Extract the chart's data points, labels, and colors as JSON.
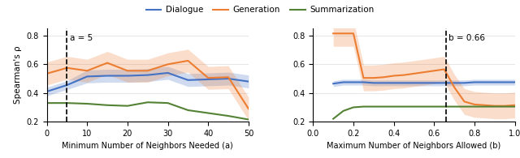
{
  "left": {
    "xlabel": "Minimum Number of Neighbors Needed (a)",
    "ylabel": "Spearman's ρ",
    "vline": 5,
    "vline_label": "a = 5",
    "xlim": [
      0,
      50
    ],
    "ylim": [
      0.2,
      0.85
    ],
    "yticks": [
      0.2,
      0.4,
      0.6,
      0.8
    ],
    "xticks": [
      0,
      10,
      20,
      30,
      40,
      50
    ],
    "dialogue": {
      "x": [
        0,
        5,
        10,
        15,
        20,
        25,
        30,
        35,
        40,
        45,
        50
      ],
      "y": [
        0.41,
        0.455,
        0.515,
        0.52,
        0.52,
        0.525,
        0.54,
        0.49,
        0.495,
        0.5,
        0.48
      ],
      "y_lo": [
        0.38,
        0.425,
        0.47,
        0.475,
        0.475,
        0.48,
        0.495,
        0.445,
        0.45,
        0.455,
        0.435
      ],
      "y_hi": [
        0.44,
        0.485,
        0.56,
        0.565,
        0.565,
        0.57,
        0.585,
        0.535,
        0.54,
        0.545,
        0.525
      ],
      "color": "#4472c4"
    },
    "generation": {
      "x": [
        0,
        5,
        10,
        15,
        20,
        25,
        30,
        35,
        40,
        45,
        50
      ],
      "y": [
        0.535,
        0.575,
        0.555,
        0.61,
        0.555,
        0.555,
        0.6,
        0.625,
        0.505,
        0.51,
        0.29
      ],
      "y_lo": [
        0.455,
        0.495,
        0.475,
        0.53,
        0.475,
        0.475,
        0.52,
        0.545,
        0.425,
        0.43,
        0.21
      ],
      "y_hi": [
        0.615,
        0.655,
        0.635,
        0.69,
        0.635,
        0.635,
        0.68,
        0.705,
        0.585,
        0.59,
        0.37
      ],
      "color": "#ed7d31"
    },
    "summarization": {
      "x": [
        0,
        5,
        10,
        15,
        20,
        25,
        30,
        35,
        40,
        45,
        50
      ],
      "y": [
        0.33,
        0.33,
        0.325,
        0.315,
        0.31,
        0.335,
        0.33,
        0.28,
        0.26,
        0.24,
        0.215
      ],
      "color": "#548235"
    }
  },
  "right": {
    "xlabel": "Maximum Number of Neighbors Allowed (b)",
    "ylabel": "",
    "vline": 0.66,
    "vline_label": "b = 0.66",
    "xlim": [
      0.0,
      1.0
    ],
    "ylim": [
      0.2,
      0.85
    ],
    "yticks": [
      0.2,
      0.4,
      0.6,
      0.8
    ],
    "xticks": [
      0.0,
      0.2,
      0.4,
      0.6,
      0.8,
      1.0
    ],
    "dialogue": {
      "x": [
        0.1,
        0.15,
        0.2,
        0.25,
        0.3,
        0.35,
        0.4,
        0.45,
        0.5,
        0.55,
        0.6,
        0.65,
        0.7,
        0.75,
        0.8,
        0.85,
        0.9,
        0.95,
        1.0
      ],
      "y": [
        0.465,
        0.475,
        0.475,
        0.475,
        0.47,
        0.47,
        0.47,
        0.47,
        0.47,
        0.47,
        0.47,
        0.47,
        0.47,
        0.47,
        0.475,
        0.475,
        0.475,
        0.475,
        0.475
      ],
      "y_lo": [
        0.445,
        0.455,
        0.455,
        0.455,
        0.45,
        0.45,
        0.45,
        0.45,
        0.45,
        0.45,
        0.45,
        0.45,
        0.45,
        0.45,
        0.455,
        0.455,
        0.455,
        0.455,
        0.455
      ],
      "y_hi": [
        0.485,
        0.495,
        0.495,
        0.495,
        0.49,
        0.49,
        0.49,
        0.49,
        0.49,
        0.49,
        0.49,
        0.49,
        0.49,
        0.49,
        0.495,
        0.495,
        0.495,
        0.495,
        0.495
      ],
      "color": "#4472c4"
    },
    "generation": {
      "x": [
        0.1,
        0.15,
        0.2,
        0.25,
        0.3,
        0.35,
        0.4,
        0.45,
        0.5,
        0.55,
        0.6,
        0.65,
        0.7,
        0.75,
        0.8,
        0.85,
        0.9,
        0.95,
        1.0
      ],
      "y": [
        0.815,
        0.815,
        0.815,
        0.505,
        0.505,
        0.51,
        0.52,
        0.525,
        0.535,
        0.545,
        0.555,
        0.565,
        0.44,
        0.34,
        0.32,
        0.315,
        0.31,
        0.31,
        0.315
      ],
      "y_lo": [
        0.725,
        0.725,
        0.725,
        0.415,
        0.415,
        0.42,
        0.43,
        0.435,
        0.445,
        0.455,
        0.465,
        0.475,
        0.35,
        0.25,
        0.23,
        0.225,
        0.22,
        0.22,
        0.225
      ],
      "y_hi": [
        0.905,
        0.905,
        0.905,
        0.595,
        0.595,
        0.6,
        0.61,
        0.615,
        0.625,
        0.635,
        0.645,
        0.655,
        0.53,
        0.43,
        0.41,
        0.405,
        0.4,
        0.4,
        0.405
      ],
      "color": "#ed7d31"
    },
    "summarization": {
      "x": [
        0.1,
        0.15,
        0.2,
        0.25,
        0.3,
        0.35,
        0.4,
        0.45,
        0.5,
        0.55,
        0.6,
        0.65,
        0.7,
        0.75,
        0.8,
        0.85,
        0.9,
        0.95,
        1.0
      ],
      "y": [
        0.22,
        0.275,
        0.3,
        0.305,
        0.305,
        0.305,
        0.305,
        0.305,
        0.305,
        0.305,
        0.305,
        0.305,
        0.305,
        0.305,
        0.305,
        0.305,
        0.305,
        0.305,
        0.305
      ],
      "color": "#548235"
    }
  },
  "legend": {
    "dialogue_label": "Dialogue",
    "generation_label": "Generation",
    "summarization_label": "Summarization"
  },
  "fill_alpha": 0.25,
  "line_width": 1.5
}
